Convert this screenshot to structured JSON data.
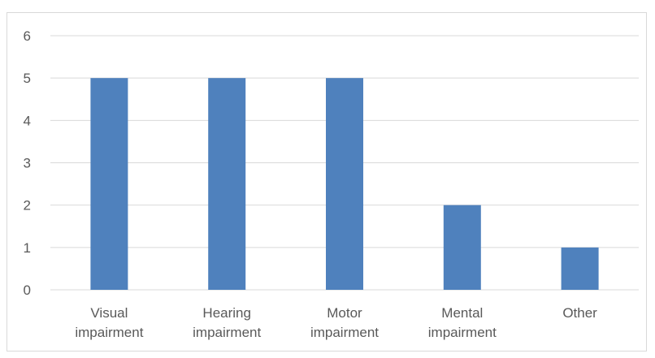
{
  "chart_data": {
    "type": "bar",
    "title": "",
    "xlabel": "",
    "ylabel": "",
    "categories": [
      [
        "Visual",
        "impairment"
      ],
      [
        "Hearing",
        "impairment"
      ],
      [
        "Motor",
        "impairment"
      ],
      [
        "Mental",
        "impairment"
      ],
      [
        "Other"
      ]
    ],
    "values": [
      5,
      5,
      5,
      2,
      1
    ],
    "ylim": [
      0,
      6
    ],
    "yticks": [
      "0",
      "1",
      "2",
      "3",
      "4",
      "5",
      "6"
    ],
    "grid": true,
    "legend": "none",
    "colors": {
      "bar": "#4f81bd",
      "grid": "#d9d9d9",
      "axis": "#d9d9d9",
      "text": "#595959"
    }
  }
}
